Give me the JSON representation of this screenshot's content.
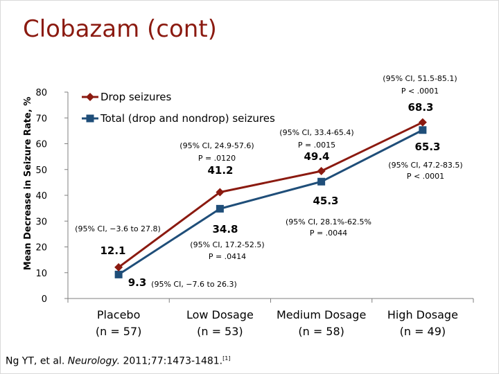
{
  "slide": {
    "title": "Clobazam (cont)",
    "citation": {
      "authors": "Ng YT, et al. ",
      "journal": "Neurology.",
      "details": " 2011;77:1473-1481.",
      "ref": "[1]"
    }
  },
  "chart_data": {
    "type": "line",
    "title": "",
    "xlabel": "",
    "ylabel": "Mean Decrease in Seizure Rate, %",
    "ylim": [
      0,
      80
    ],
    "yticks": [
      0,
      10,
      20,
      30,
      40,
      50,
      60,
      70,
      80
    ],
    "categories": [
      {
        "line1": "Placebo",
        "line2": "(n = 57)"
      },
      {
        "line1": "Low Dosage",
        "line2": "(n = 53)"
      },
      {
        "line1": "Medium Dosage",
        "line2": "(n = 58)"
      },
      {
        "line1": "High Dosage",
        "line2": "(n = 49)"
      }
    ],
    "legend_position": "top-left",
    "series": [
      {
        "name": "Drop seizures",
        "marker": "diamond",
        "color": "#8b1a10",
        "values": [
          12.1,
          41.2,
          49.4,
          68.3
        ],
        "data_labels": [
          "12.1",
          "41.2",
          "49.4",
          "68.3"
        ],
        "ci_labels": [
          [
            "(95% CI, −3.6 to 27.8)"
          ],
          [
            "(95% CI, 24.9-57.6)",
            "P = .0120"
          ],
          [
            "(95% CI,  33.4-65.4)",
            "P = .0015"
          ],
          [
            "(95% CI, 51.5-85.1)",
            "P < .0001"
          ]
        ]
      },
      {
        "name": "Total (drop and nondrop) seizures",
        "marker": "square",
        "color": "#1f4e79",
        "values": [
          9.3,
          34.8,
          45.3,
          65.3
        ],
        "data_labels": [
          "9.3",
          "34.8",
          "45.3",
          "65.3"
        ],
        "ci_labels": [
          [
            "(95% CI, −7.6 to 26.3)"
          ],
          [
            "(95% CI, 17.2-52.5)",
            "P = .0414"
          ],
          [
            "(95% CI, 28.1%-62.5%",
            "P = .0044"
          ],
          [
            "(95% CI, 47.2-83.5)",
            "P < .0001"
          ]
        ]
      }
    ]
  }
}
